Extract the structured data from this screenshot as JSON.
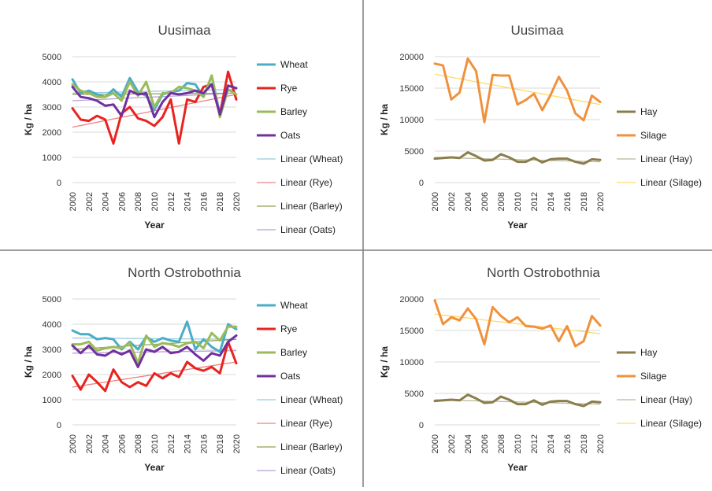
{
  "colors": {
    "wheat": "#4bacc6",
    "rye": "#e8231f",
    "barley": "#9bbb59",
    "oats": "#7030a0",
    "lin_wheat": "#92cddc",
    "lin_rye": "#f08080",
    "lin_barley": "#92a150",
    "lin_oats": "#b8a0d8",
    "hay": "#8b7d4b",
    "silage": "#f0913d",
    "lin_hay": "#b8b89a",
    "lin_silage": "#ffd966",
    "grid": "#d9d9d9",
    "text": "#333333",
    "divider": "#7f7f7f"
  },
  "chart_data": [
    {
      "type": "line",
      "title": "Uusimaa",
      "xlabel": "Year",
      "ylabel": "Kg / ha",
      "ylim": [
        0,
        5000
      ],
      "yticks": [
        "0",
        "1000",
        "2000",
        "3000",
        "4000",
        "5000"
      ],
      "x": [
        2000,
        2001,
        2002,
        2003,
        2004,
        2005,
        2006,
        2007,
        2008,
        2009,
        2010,
        2011,
        2012,
        2013,
        2014,
        2015,
        2016,
        2017,
        2018,
        2019,
        2020
      ],
      "xtick_labels": [
        "2000",
        "2002",
        "2004",
        "2006",
        "2008",
        "2010",
        "2012",
        "2014",
        "2016",
        "2018",
        "2020"
      ],
      "legend_position": "right",
      "series": [
        {
          "name": "Wheat",
          "color_key": "wheat",
          "values": [
            4100,
            3550,
            3650,
            3500,
            3400,
            3700,
            3400,
            4150,
            3600,
            3450,
            2900,
            3500,
            3600,
            3650,
            3950,
            3900,
            3400,
            4250,
            2700,
            3850,
            3750
          ]
        },
        {
          "name": "Rye",
          "color_key": "rye",
          "values": [
            2950,
            2500,
            2450,
            2650,
            2500,
            1550,
            2750,
            3000,
            2550,
            2450,
            2250,
            2600,
            3300,
            1550,
            3300,
            3200,
            3800,
            3900,
            2700,
            4400,
            3300
          ]
        },
        {
          "name": "Barley",
          "color_key": "barley",
          "values": [
            3900,
            3650,
            3550,
            3400,
            3400,
            3550,
            3250,
            4000,
            3450,
            4000,
            3000,
            3550,
            3550,
            3800,
            3750,
            3650,
            3400,
            4250,
            2600,
            3700,
            3500
          ]
        },
        {
          "name": "Oats",
          "color_key": "oats",
          "values": [
            3800,
            3400,
            3350,
            3250,
            3050,
            3100,
            2650,
            3650,
            3500,
            3550,
            2600,
            3200,
            3550,
            3500,
            3550,
            3650,
            3550,
            3900,
            2700,
            3850,
            3750
          ]
        }
      ],
      "trendlines": [
        {
          "name": "Linear (Wheat)",
          "color_key": "lin_wheat",
          "start": 3550,
          "end": 3700
        },
        {
          "name": "Linear (Rye)",
          "color_key": "lin_rye",
          "start": 2200,
          "end": 3500
        },
        {
          "name": "Linear (Barley)",
          "color_key": "lin_barley",
          "start": 3500,
          "end": 3550
        },
        {
          "name": "Linear (Oats)",
          "color_key": "lin_oats",
          "start": 3250,
          "end": 3550
        }
      ]
    },
    {
      "type": "line",
      "title": "Uusimaa",
      "xlabel": "Year",
      "ylabel": "Kg / ha",
      "ylim": [
        0,
        20000
      ],
      "yticks": [
        "0",
        "5000",
        "10000",
        "15000",
        "20000"
      ],
      "x": [
        2000,
        2001,
        2002,
        2003,
        2004,
        2005,
        2006,
        2007,
        2008,
        2009,
        2010,
        2011,
        2012,
        2013,
        2014,
        2015,
        2016,
        2017,
        2018,
        2019,
        2020
      ],
      "xtick_labels": [
        "2000",
        "2002",
        "2004",
        "2006",
        "2008",
        "2010",
        "2012",
        "2014",
        "2016",
        "2018",
        "2020"
      ],
      "legend_position": "right",
      "series": [
        {
          "name": "Hay",
          "color_key": "hay",
          "values": [
            3800,
            3900,
            4000,
            3900,
            4800,
            4200,
            3500,
            3600,
            4500,
            4000,
            3300,
            3300,
            3900,
            3200,
            3700,
            3800,
            3800,
            3300,
            3000,
            3700,
            3600
          ]
        },
        {
          "name": "Silage",
          "color_key": "silage",
          "values": [
            18900,
            18600,
            13200,
            14300,
            19700,
            17700,
            9600,
            17100,
            17000,
            17000,
            12400,
            13100,
            14100,
            11500,
            13900,
            16800,
            14600,
            11000,
            9900,
            13800,
            12800
          ]
        }
      ],
      "trendlines": [
        {
          "name": "Linear (Hay)",
          "color_key": "lin_hay",
          "start": 4000,
          "end": 3300
        },
        {
          "name": "Linear (Silage)",
          "color_key": "lin_silage",
          "start": 17200,
          "end": 12400
        }
      ]
    },
    {
      "type": "line",
      "title": "North Ostrobothnia",
      "xlabel": "Year",
      "ylabel": "Kg / ha",
      "ylim": [
        0,
        5000
      ],
      "yticks": [
        "0",
        "1000",
        "2000",
        "3000",
        "4000",
        "5000"
      ],
      "x": [
        2000,
        2001,
        2002,
        2003,
        2004,
        2005,
        2006,
        2007,
        2008,
        2009,
        2010,
        2011,
        2012,
        2013,
        2014,
        2015,
        2016,
        2017,
        2018,
        2019,
        2020
      ],
      "xtick_labels": [
        "2000",
        "2002",
        "2004",
        "2006",
        "2008",
        "2010",
        "2012",
        "2014",
        "2016",
        "2018",
        "2020"
      ],
      "legend_position": "right",
      "series": [
        {
          "name": "Wheat",
          "color_key": "wheat",
          "values": [
            3750,
            3600,
            3600,
            3400,
            3450,
            3400,
            3000,
            3300,
            3000,
            3500,
            3300,
            3450,
            3350,
            3300,
            4100,
            3000,
            3400,
            3100,
            2900,
            4000,
            3800
          ]
        },
        {
          "name": "Rye",
          "color_key": "rye",
          "values": [
            1950,
            1400,
            2000,
            1700,
            1350,
            2200,
            1700,
            1500,
            1700,
            1550,
            2050,
            1850,
            2050,
            1900,
            2500,
            2250,
            2150,
            2300,
            2050,
            3300,
            2450
          ]
        },
        {
          "name": "Barley",
          "color_key": "barley",
          "values": [
            3200,
            3200,
            3300,
            2950,
            3050,
            3100,
            3050,
            3250,
            2450,
            3550,
            3100,
            3250,
            3200,
            3100,
            3250,
            3300,
            3050,
            3650,
            3350,
            3900,
            3900
          ]
        },
        {
          "name": "Oats",
          "color_key": "oats",
          "values": [
            3150,
            2850,
            3150,
            2800,
            2750,
            2950,
            2800,
            2950,
            2300,
            3000,
            2900,
            3100,
            2850,
            2900,
            3100,
            2800,
            2550,
            2850,
            2750,
            3300,
            3550
          ]
        }
      ],
      "trendlines": [
        {
          "name": "Linear (Wheat)",
          "color_key": "lin_wheat",
          "start": 3450,
          "end": 3400
        },
        {
          "name": "Linear (Rye)",
          "color_key": "lin_rye",
          "start": 1500,
          "end": 2500
        },
        {
          "name": "Linear (Barley)",
          "color_key": "lin_barley",
          "start": 3000,
          "end": 3400
        },
        {
          "name": "Linear (Oats)",
          "color_key": "lin_oats",
          "start": 2850,
          "end": 2950
        }
      ]
    },
    {
      "type": "line",
      "title": "North Ostrobothnia",
      "xlabel": "Year",
      "ylabel": "Kg / ha",
      "ylim": [
        0,
        20000
      ],
      "yticks": [
        "0",
        "5000",
        "10000",
        "15000",
        "20000"
      ],
      "x": [
        2000,
        2001,
        2002,
        2003,
        2004,
        2005,
        2006,
        2007,
        2008,
        2009,
        2010,
        2011,
        2012,
        2013,
        2014,
        2015,
        2016,
        2017,
        2018,
        2019,
        2020
      ],
      "xtick_labels": [
        "2000",
        "2002",
        "2004",
        "2006",
        "2008",
        "2010",
        "2012",
        "2014",
        "2016",
        "2018",
        "2020"
      ],
      "legend_position": "right",
      "series": [
        {
          "name": "Hay",
          "color_key": "hay",
          "values": [
            3800,
            3900,
            4000,
            3900,
            4800,
            4200,
            3500,
            3600,
            4500,
            4000,
            3300,
            3300,
            3900,
            3200,
            3700,
            3800,
            3800,
            3300,
            3000,
            3700,
            3600
          ]
        },
        {
          "name": "Silage",
          "color_key": "silage",
          "values": [
            19800,
            16000,
            17100,
            16600,
            18500,
            16800,
            12800,
            18700,
            17300,
            16300,
            17100,
            15700,
            15600,
            15300,
            15800,
            13300,
            15700,
            12500,
            13300,
            17300,
            15800
          ]
        }
      ],
      "trendlines": [
        {
          "name": "Linear (Hay)",
          "color_key": "lin_hay",
          "start": 4000,
          "end": 3300
        },
        {
          "name": "Linear (Silage)",
          "color_key": "lin_silage",
          "start": 17600,
          "end": 14500
        }
      ]
    }
  ]
}
